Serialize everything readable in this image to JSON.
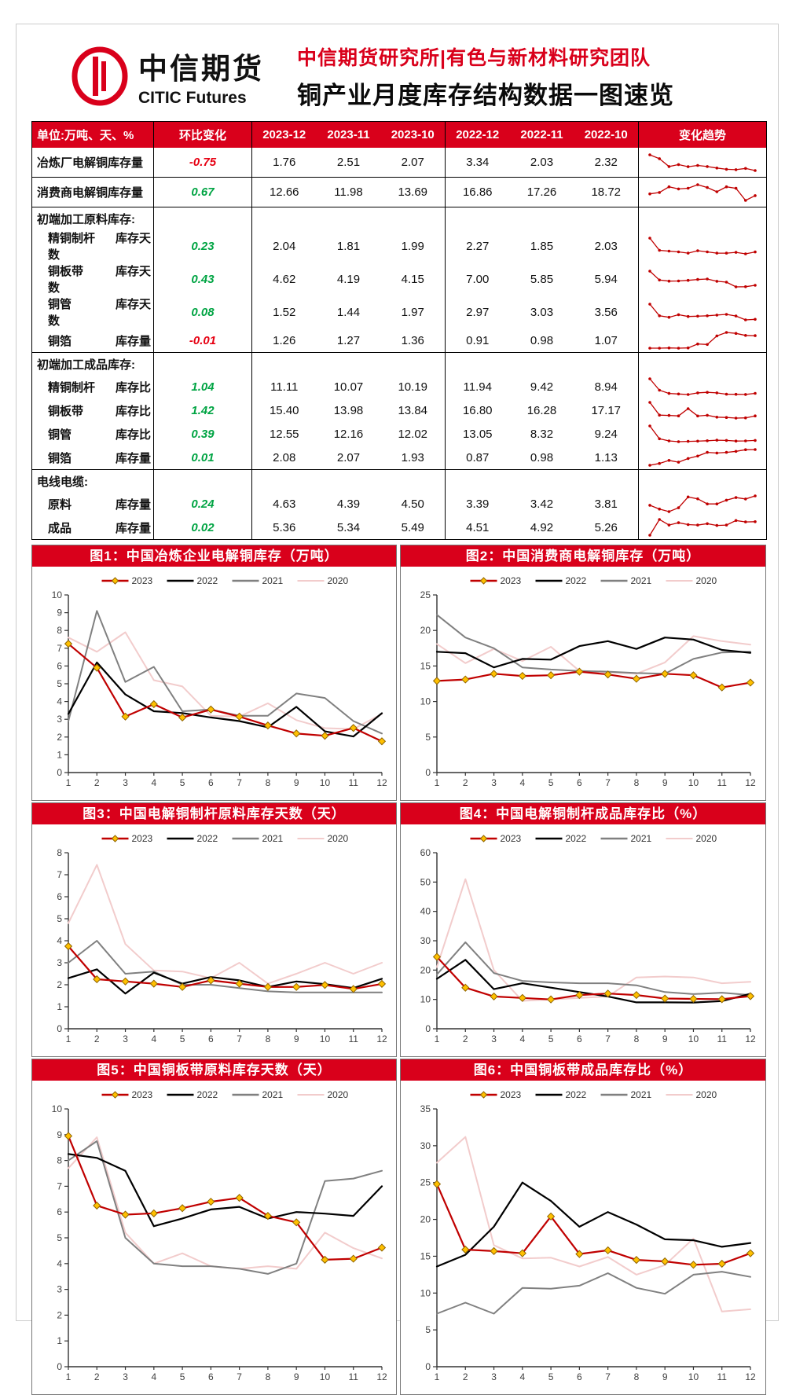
{
  "header": {
    "logo_cn": "中信期货",
    "logo_en": "CITIC Futures",
    "team_title": "中信期货研究所|有色与新材料研究团队",
    "main_title": "铜产业月度库存结构数据一图速览"
  },
  "colors": {
    "brand_red": "#d9001b",
    "positive_green": "#00a443",
    "negative_red": "#e60012",
    "spark_red": "#c00000",
    "axis": "#333333",
    "tick_label": "#404040",
    "marker_fill": "#ffc000",
    "marker_stroke": "#8f6400",
    "series": {
      "2023": "#c00000",
      "2022": "#000000",
      "2021": "#808080",
      "2020": "#f2cccc"
    }
  },
  "table": {
    "columns": [
      "单位:万吨、天、%",
      "环比变化",
      "2023-12",
      "2023-11",
      "2023-10",
      "2022-12",
      "2022-11",
      "2022-10",
      "变化趋势"
    ],
    "rows": [
      {
        "type": "data",
        "indent": false,
        "label": "冶炼厂电解铜库存量",
        "metric": "",
        "change": "-0.75",
        "dir": "neg",
        "values": [
          "1.76",
          "2.51",
          "2.07",
          "3.34",
          "2.03",
          "2.32"
        ],
        "spark": [
          7.25,
          5.9,
          3.15,
          3.85,
          3.1,
          3.55,
          3.15,
          2.65,
          2.2,
          2.07,
          2.51,
          1.76
        ]
      },
      {
        "type": "data",
        "indent": false,
        "label": "消费商电解铜库存量",
        "metric": "",
        "change": "0.67",
        "dir": "pos",
        "values": [
          "12.66",
          "11.98",
          "13.69",
          "16.86",
          "17.26",
          "18.72"
        ],
        "spark": [
          12.9,
          13.1,
          13.9,
          13.6,
          13.7,
          14.2,
          13.8,
          13.2,
          13.9,
          13.69,
          11.98,
          12.66
        ]
      },
      {
        "type": "section",
        "label": "初端加工原料库存:"
      },
      {
        "type": "data",
        "indent": true,
        "label": "精铜制杆",
        "metric": "库存天数",
        "change": "0.23",
        "dir": "pos",
        "values": [
          "2.04",
          "1.81",
          "1.99",
          "2.27",
          "1.85",
          "2.03"
        ],
        "spark": [
          3.75,
          2.25,
          2.15,
          2.05,
          1.9,
          2.2,
          2.05,
          1.9,
          1.9,
          1.99,
          1.81,
          2.04
        ]
      },
      {
        "type": "data",
        "indent": true,
        "label": "铜板带",
        "metric": "库存天数",
        "change": "0.43",
        "dir": "pos",
        "values": [
          "4.62",
          "4.19",
          "4.15",
          "7.00",
          "5.85",
          "5.94"
        ],
        "spark": [
          8.95,
          6.25,
          5.9,
          5.95,
          6.15,
          6.4,
          6.55,
          5.85,
          5.6,
          4.15,
          4.19,
          4.62
        ]
      },
      {
        "type": "data",
        "indent": true,
        "label": "铜管",
        "metric": "库存天数",
        "change": "0.08",
        "dir": "pos",
        "values": [
          "1.52",
          "1.44",
          "1.97",
          "2.97",
          "3.03",
          "3.56"
        ],
        "spark": [
          3.6,
          2.0,
          1.8,
          2.15,
          1.9,
          1.95,
          2.0,
          2.1,
          2.2,
          1.97,
          1.44,
          1.52
        ]
      },
      {
        "type": "data",
        "indent": true,
        "label": "铜箔",
        "metric": "库存量",
        "change": "-0.01",
        "dir": "neg",
        "values": [
          "1.26",
          "1.27",
          "1.36",
          "0.91",
          "0.98",
          "1.07"
        ],
        "spark": [
          0.72,
          0.72,
          0.73,
          0.72,
          0.73,
          0.9,
          0.88,
          1.25,
          1.4,
          1.36,
          1.27,
          1.26
        ]
      },
      {
        "type": "section",
        "label": "初端加工成品库存:"
      },
      {
        "type": "data",
        "indent": true,
        "label": "精铜制杆",
        "metric": "库存比",
        "change": "1.04",
        "dir": "pos",
        "values": [
          "11.11",
          "10.07",
          "10.19",
          "11.94",
          "9.42",
          "8.94"
        ],
        "spark": [
          24.5,
          14,
          11,
          10.5,
          10,
          11.5,
          12,
          11.5,
          10.3,
          10.19,
          10.07,
          11.11
        ]
      },
      {
        "type": "data",
        "indent": true,
        "label": "铜板带",
        "metric": "库存比",
        "change": "1.42",
        "dir": "pos",
        "values": [
          "15.40",
          "13.98",
          "13.84",
          "16.80",
          "16.28",
          "17.17"
        ],
        "spark": [
          24.8,
          15.9,
          15.7,
          15.4,
          20.4,
          15.3,
          15.8,
          14.5,
          14.3,
          13.84,
          13.98,
          15.4
        ]
      },
      {
        "type": "data",
        "indent": true,
        "label": "铜管",
        "metric": "库存比",
        "change": "0.39",
        "dir": "pos",
        "values": [
          "12.55",
          "12.16",
          "12.02",
          "13.05",
          "8.32",
          "9.24"
        ],
        "spark": [
          25,
          14,
          12.2,
          11.5,
          11.8,
          12,
          12.3,
          12.8,
          12.6,
          12.02,
          12.16,
          12.55
        ]
      },
      {
        "type": "data",
        "indent": true,
        "label": "铜箔",
        "metric": "库存量",
        "change": "0.01",
        "dir": "pos",
        "values": [
          "2.08",
          "2.07",
          "1.93",
          "0.87",
          "0.98",
          "1.13"
        ],
        "spark": [
          0.8,
          0.95,
          1.2,
          1.05,
          1.35,
          1.55,
          1.85,
          1.8,
          1.85,
          1.93,
          2.07,
          2.08
        ]
      },
      {
        "type": "section",
        "label": "电线电缆:"
      },
      {
        "type": "data",
        "indent": true,
        "label": "原料",
        "metric": "库存量",
        "change": "0.24",
        "dir": "pos",
        "values": [
          "4.63",
          "4.39",
          "4.50",
          "3.39",
          "3.42",
          "3.81"
        ],
        "spark": [
          3.9,
          3.6,
          3.4,
          3.7,
          4.55,
          4.4,
          4.0,
          4.0,
          4.3,
          4.5,
          4.39,
          4.63
        ]
      },
      {
        "type": "data",
        "indent": true,
        "label": "成品",
        "metric": "库存量",
        "change": "0.02",
        "dir": "pos",
        "values": [
          "5.36",
          "5.34",
          "5.49",
          "4.51",
          "4.92",
          "5.26"
        ],
        "spark": [
          3.9,
          5.6,
          5.0,
          5.25,
          5.05,
          5.0,
          5.15,
          4.95,
          5.0,
          5.49,
          5.34,
          5.36
        ]
      }
    ]
  },
  "chart_data": [
    {
      "type": "line",
      "title": "图1：中国冶炼企业电解铜库存（万吨）",
      "x_labels": [
        "1",
        "2",
        "3",
        "4",
        "5",
        "6",
        "7",
        "8",
        "9",
        "10",
        "11",
        "12"
      ],
      "ylim": [
        0,
        10
      ],
      "ytick": 1,
      "grid": false,
      "legend_position": "top",
      "series": [
        {
          "name": "2023",
          "values": [
            7.25,
            5.9,
            3.15,
            3.85,
            3.1,
            3.55,
            3.15,
            2.65,
            2.2,
            2.07,
            2.51,
            1.76
          ]
        },
        {
          "name": "2022",
          "values": [
            3.3,
            6.2,
            4.4,
            3.45,
            3.35,
            3.1,
            2.9,
            2.55,
            3.7,
            2.32,
            2.03,
            3.34
          ]
        },
        {
          "name": "2021",
          "values": [
            2.9,
            9.1,
            5.1,
            5.95,
            3.45,
            3.55,
            3.2,
            3.2,
            4.45,
            4.2,
            2.9,
            2.2
          ]
        },
        {
          "name": "2020",
          "values": [
            7.6,
            6.8,
            7.9,
            5.2,
            4.85,
            3.2,
            3.15,
            3.9,
            2.95,
            2.5,
            2.45,
            3.3
          ]
        }
      ]
    },
    {
      "type": "line",
      "title": "图2：中国消费商电解铜库存（万吨）",
      "x_labels": [
        "1",
        "2",
        "3",
        "4",
        "5",
        "6",
        "7",
        "8",
        "9",
        "10",
        "11",
        "12"
      ],
      "ylim": [
        0,
        25
      ],
      "ytick": 5,
      "grid": false,
      "legend_position": "top",
      "series": [
        {
          "name": "2023",
          "values": [
            12.9,
            13.1,
            13.9,
            13.6,
            13.7,
            14.2,
            13.8,
            13.2,
            13.9,
            13.69,
            11.98,
            12.66
          ]
        },
        {
          "name": "2022",
          "values": [
            17.0,
            16.8,
            14.8,
            16.0,
            15.9,
            17.8,
            18.5,
            17.4,
            19.0,
            18.72,
            17.26,
            16.86
          ]
        },
        {
          "name": "2021",
          "values": [
            22.2,
            19.0,
            17.5,
            14.8,
            14.5,
            14.3,
            14.2,
            14.0,
            13.9,
            16.0,
            16.9,
            17.0
          ]
        },
        {
          "name": "2020",
          "values": [
            18.1,
            15.4,
            17.4,
            15.7,
            17.7,
            14.3,
            14.1,
            13.9,
            15.5,
            19.2,
            18.5,
            18.0
          ]
        }
      ]
    },
    {
      "type": "line",
      "title": "图3：中国电解铜制杆原料库存天数（天）",
      "x_labels": [
        "1",
        "2",
        "3",
        "4",
        "5",
        "6",
        "7",
        "8",
        "9",
        "10",
        "11",
        "12"
      ],
      "ylim": [
        0,
        8
      ],
      "ytick": 1,
      "grid": false,
      "legend_position": "top",
      "series": [
        {
          "name": "2023",
          "values": [
            3.75,
            2.25,
            2.15,
            2.05,
            1.9,
            2.2,
            2.05,
            1.9,
            1.9,
            1.99,
            1.81,
            2.04
          ]
        },
        {
          "name": "2022",
          "values": [
            2.3,
            2.7,
            1.6,
            2.55,
            2.05,
            2.35,
            2.2,
            1.9,
            2.15,
            2.03,
            1.85,
            2.27
          ]
        },
        {
          "name": "2021",
          "values": [
            3.0,
            4.0,
            2.5,
            2.6,
            2.0,
            2.0,
            1.85,
            1.7,
            1.65,
            1.65,
            1.65,
            1.65
          ]
        },
        {
          "name": "2020",
          "values": [
            4.8,
            7.45,
            3.85,
            2.65,
            2.6,
            2.3,
            3.0,
            2.05,
            2.5,
            3.0,
            2.5,
            3.0
          ]
        }
      ]
    },
    {
      "type": "line",
      "title": "图4：中国电解铜制杆成品库存比（%）",
      "x_labels": [
        "1",
        "2",
        "3",
        "4",
        "5",
        "6",
        "7",
        "8",
        "9",
        "10",
        "11",
        "12"
      ],
      "ylim": [
        0,
        60
      ],
      "ytick": 10,
      "grid": false,
      "legend_position": "top",
      "series": [
        {
          "name": "2023",
          "values": [
            24.5,
            14.0,
            11.0,
            10.5,
            10.0,
            11.5,
            12.0,
            11.5,
            10.3,
            10.19,
            10.07,
            11.11
          ]
        },
        {
          "name": "2022",
          "values": [
            17.0,
            23.5,
            13.5,
            15.5,
            14.0,
            12.5,
            11.0,
            9.0,
            9.0,
            8.94,
            9.42,
            11.94
          ]
        },
        {
          "name": "2021",
          "values": [
            18.5,
            29.5,
            19.0,
            16.3,
            15.8,
            15.5,
            15.5,
            14.8,
            12.5,
            11.8,
            12.3,
            11.5
          ]
        },
        {
          "name": "2020",
          "values": [
            21.0,
            51.0,
            20.0,
            9.5,
            10.0,
            10.5,
            11.0,
            17.5,
            17.8,
            17.5,
            15.5,
            16.0
          ]
        }
      ]
    },
    {
      "type": "line",
      "title": "图5：中国铜板带原料库存天数（天）",
      "x_labels": [
        "1",
        "2",
        "3",
        "4",
        "5",
        "6",
        "7",
        "8",
        "9",
        "10",
        "11",
        "12"
      ],
      "ylim": [
        0,
        10
      ],
      "ytick": 1,
      "grid": false,
      "legend_position": "top",
      "series": [
        {
          "name": "2023",
          "values": [
            8.95,
            6.25,
            5.9,
            5.95,
            6.15,
            6.4,
            6.55,
            5.85,
            5.6,
            4.15,
            4.19,
            4.62
          ]
        },
        {
          "name": "2022",
          "values": [
            8.25,
            8.1,
            7.6,
            5.45,
            5.75,
            6.1,
            6.2,
            5.75,
            6.0,
            5.94,
            5.85,
            7.0
          ]
        },
        {
          "name": "2021",
          "values": [
            8.0,
            8.75,
            5.0,
            4.0,
            3.9,
            3.9,
            3.8,
            3.6,
            4.0,
            7.2,
            7.3,
            7.6
          ]
        },
        {
          "name": "2020",
          "values": [
            7.7,
            8.9,
            5.2,
            4.0,
            4.4,
            3.9,
            3.8,
            3.9,
            3.8,
            5.2,
            4.6,
            4.2
          ]
        }
      ]
    },
    {
      "type": "line",
      "title": "图6：中国铜板带成品库存比（%）",
      "x_labels": [
        "1",
        "2",
        "3",
        "4",
        "5",
        "6",
        "7",
        "8",
        "9",
        "10",
        "11",
        "12"
      ],
      "ylim": [
        0,
        35
      ],
      "ytick": 5,
      "grid": false,
      "legend_position": "top",
      "series": [
        {
          "name": "2023",
          "values": [
            24.8,
            15.9,
            15.7,
            15.4,
            20.4,
            15.3,
            15.8,
            14.5,
            14.3,
            13.84,
            13.98,
            15.4
          ]
        },
        {
          "name": "2022",
          "values": [
            13.6,
            15.2,
            19.0,
            25.0,
            22.5,
            19.0,
            21.0,
            19.3,
            17.3,
            17.17,
            16.28,
            16.8
          ]
        },
        {
          "name": "2021",
          "values": [
            7.2,
            8.7,
            7.2,
            10.7,
            10.6,
            11.0,
            12.7,
            10.7,
            9.9,
            12.5,
            12.9,
            12.2
          ]
        },
        {
          "name": "2020",
          "values": [
            27.7,
            31.2,
            16.5,
            14.7,
            14.8,
            13.6,
            14.9,
            12.5,
            13.8,
            17.4,
            7.5,
            7.8
          ]
        }
      ]
    }
  ]
}
